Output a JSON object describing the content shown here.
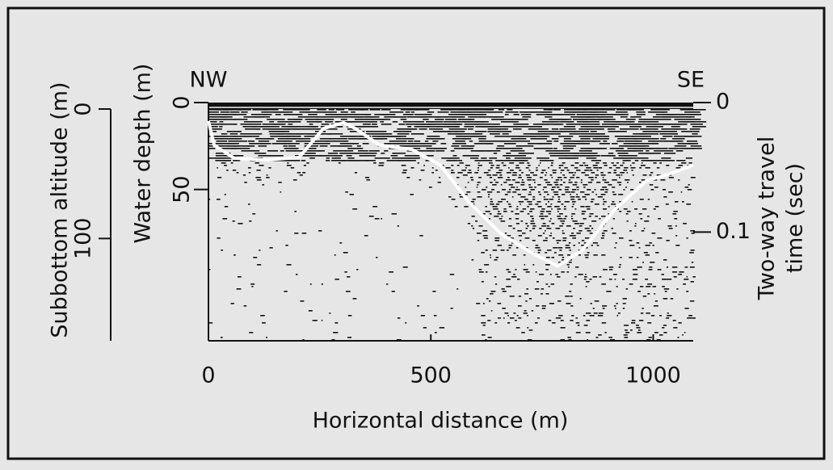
{
  "chart_data": {
    "type": "line",
    "left_end_label": "NW",
    "right_end_label": "SE",
    "x_label": "Horizontal distance (m)",
    "y_label": "Water depth (m)",
    "y2_label_lines": [
      "Two-way travel",
      "time (sec)"
    ],
    "subbottom_label": "Subbottom altitude (m)",
    "xlim": [
      0,
      1090
    ],
    "xticks": [
      0,
      500,
      1000
    ],
    "ylim": [
      0,
      137
    ],
    "yticks": [
      0,
      50
    ],
    "y2lim": [
      0,
      0.184
    ],
    "y2ticks": [
      0,
      0.1
    ],
    "subbottom_lim": [
      0,
      179
    ],
    "subbottom_ticks": [
      0,
      100
    ],
    "series": [
      {
        "color": "#ffffff",
        "x": [
          0,
          13,
          58,
          131,
          204,
          258,
          304,
          331,
          385,
          458,
          522,
          585,
          658,
          731,
          785,
          840,
          913,
          985,
          1040,
          1090
        ],
        "values": [
          10.6,
          24.5,
          32,
          33,
          31.5,
          15,
          11.6,
          15,
          24.5,
          27,
          36,
          57,
          75.5,
          87,
          94,
          85,
          61.6,
          45,
          40.7,
          36
        ]
      }
    ]
  }
}
